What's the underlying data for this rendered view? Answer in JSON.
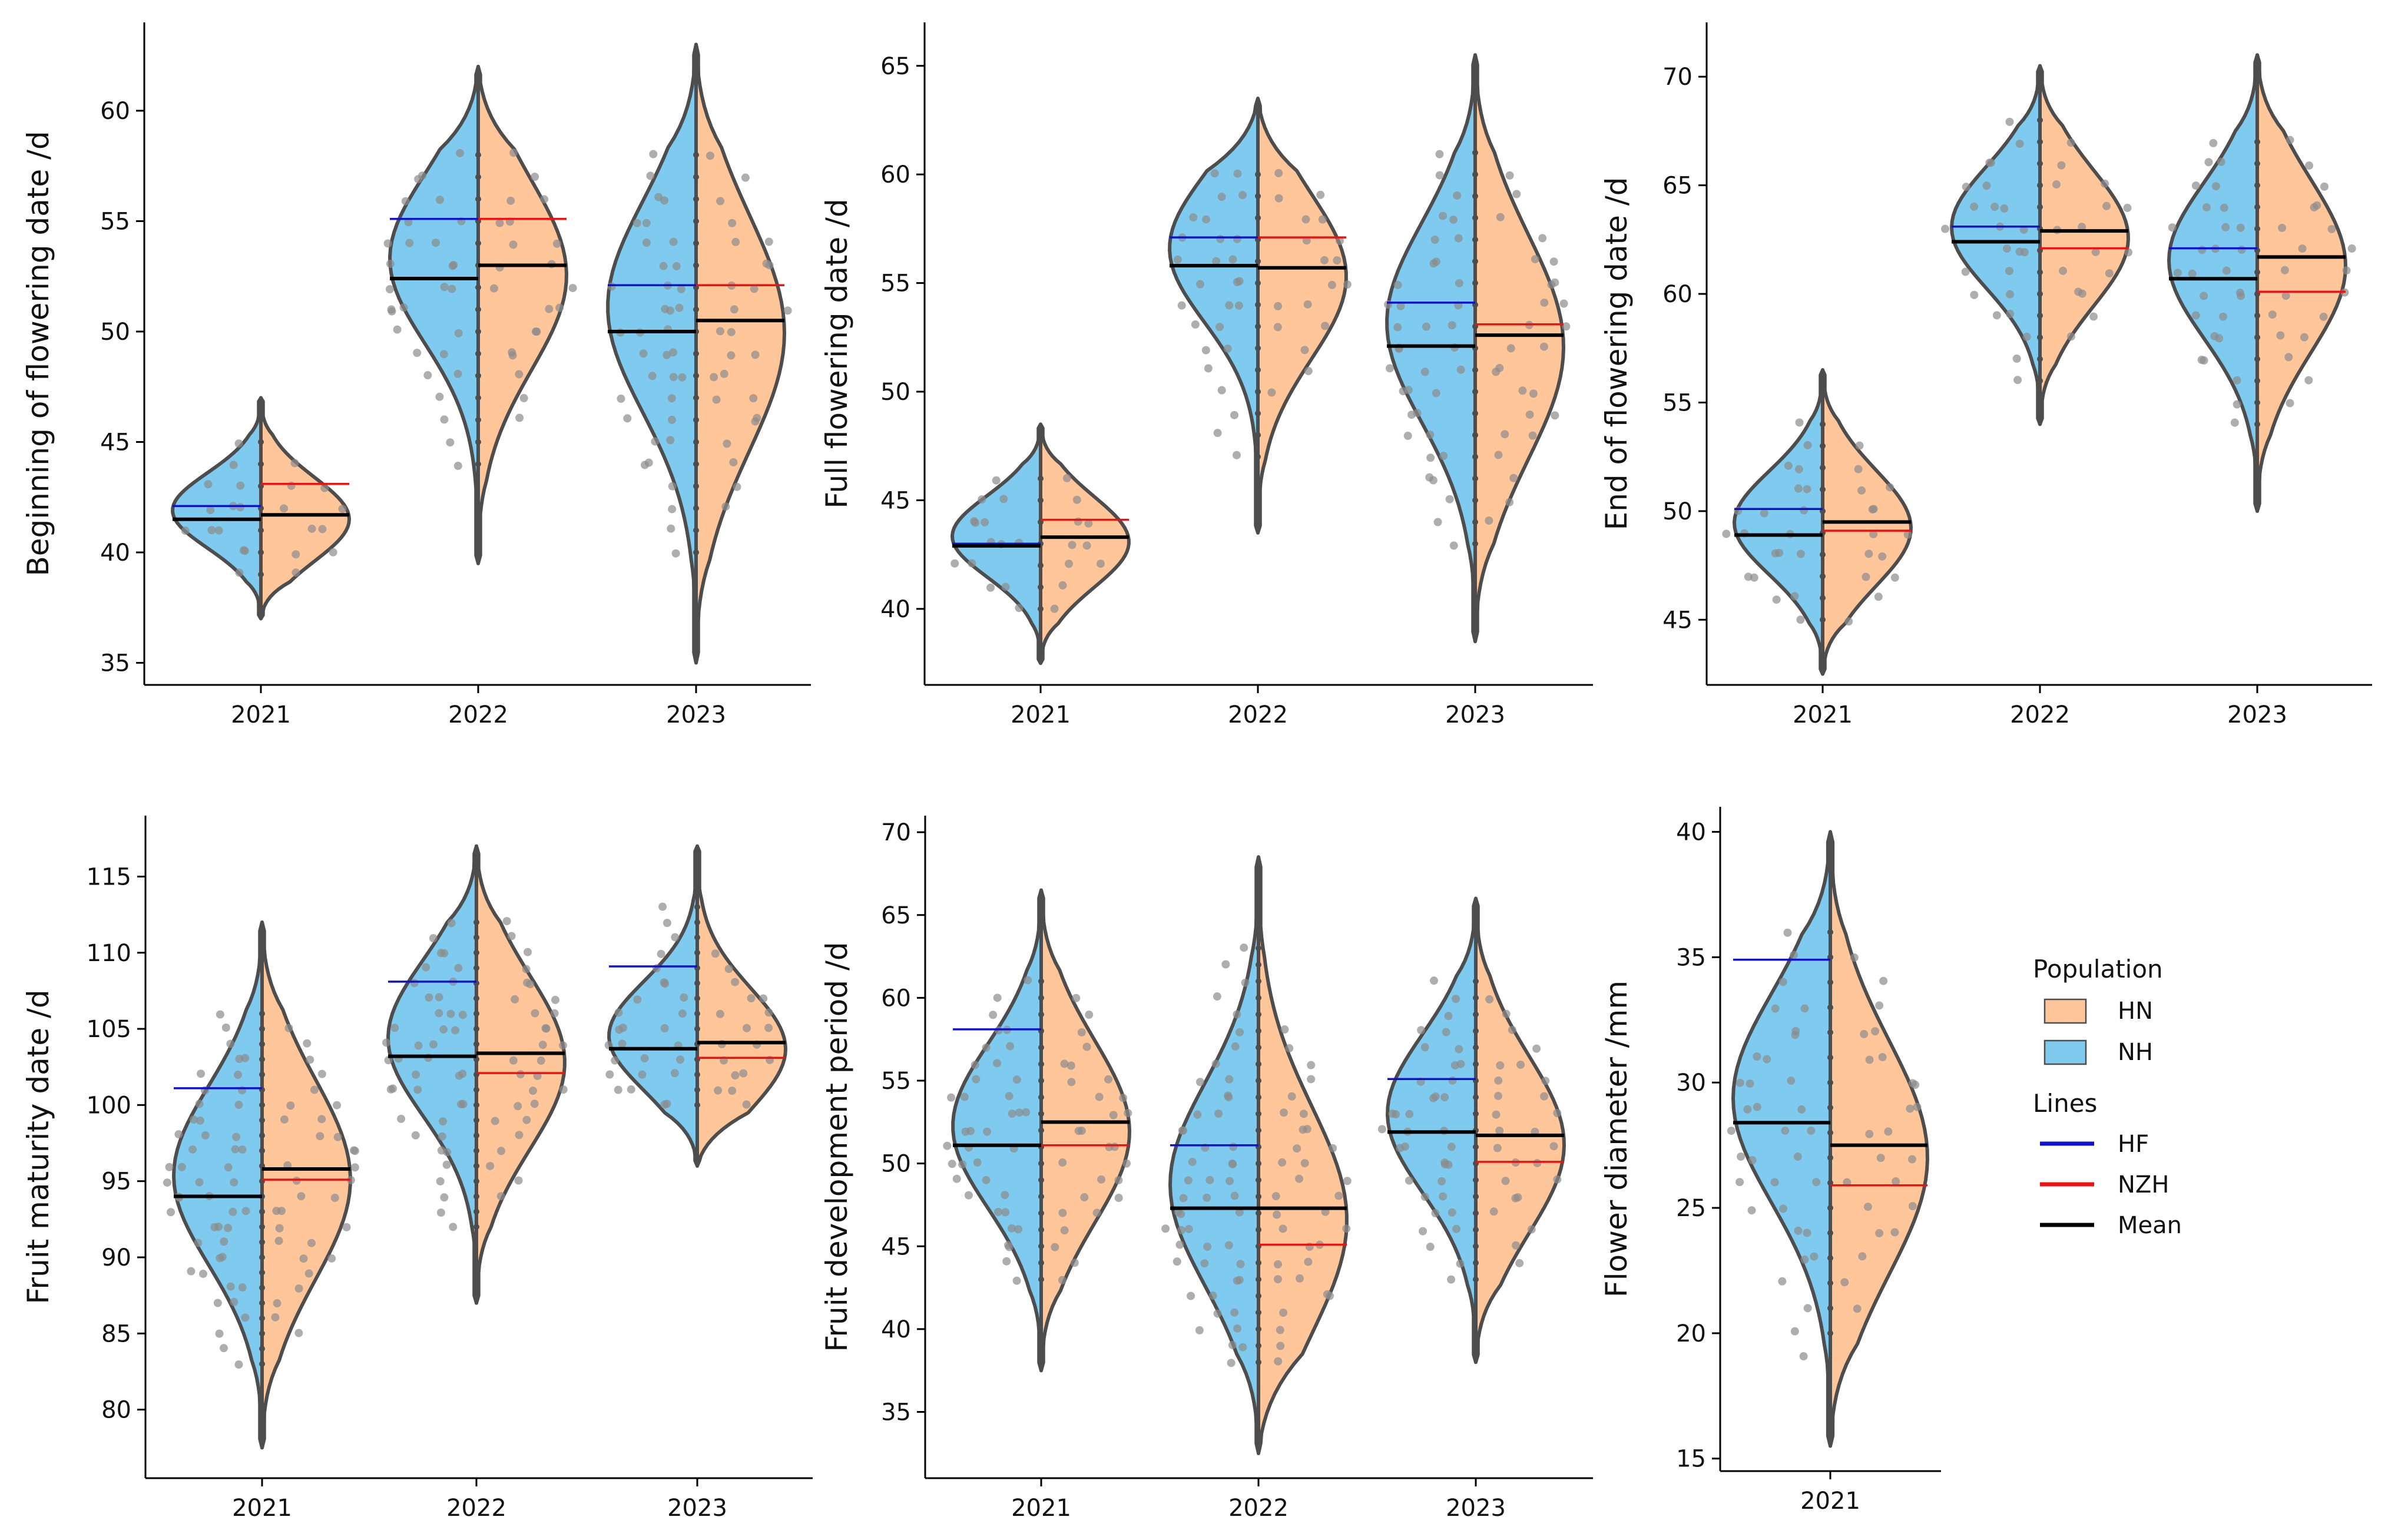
{
  "colors": {
    "NH": "#7ecbef",
    "HN": "#ffc69a",
    "outline": "#4d4d4d",
    "HF": "#1010d0",
    "NZH": "#ee1111",
    "Mean": "#000000",
    "points": "#8c8c8c"
  },
  "legend": {
    "population_title": "Population",
    "population_items": [
      {
        "label": "HN",
        "color_key": "HN"
      },
      {
        "label": "NH",
        "color_key": "NH"
      }
    ],
    "lines_title": "Lines",
    "lines_items": [
      {
        "label": "HF",
        "color_key": "HF"
      },
      {
        "label": "NZH",
        "color_key": "NZH"
      },
      {
        "label": "Mean",
        "color_key": "Mean"
      }
    ]
  },
  "chart_data": [
    {
      "type": "violin",
      "ylabel": "Beginning of flowering date /d",
      "categories": [
        "2021",
        "2022",
        "2023"
      ],
      "ylim": [
        34,
        64
      ],
      "yticks": [
        35,
        40,
        45,
        50,
        55,
        60
      ],
      "groups": [
        {
          "category": "2021",
          "range": [
            37,
            47
          ],
          "NH_mean": 41.5,
          "HN_mean": 41.7,
          "HF": 42.1,
          "NZH": 43.1,
          "points_range": [
            39,
            45
          ]
        },
        {
          "category": "2022",
          "range": [
            39.5,
            62
          ],
          "NH_mean": 52.4,
          "HN_mean": 53.0,
          "HF": 55.1,
          "NZH": 55.1,
          "points_range": [
            44,
            58
          ]
        },
        {
          "category": "2023",
          "range": [
            35,
            63
          ],
          "NH_mean": 50.0,
          "HN_mean": 50.5,
          "HF": 52.1,
          "NZH": 52.1,
          "points_range": [
            40,
            58
          ]
        }
      ]
    },
    {
      "type": "violin",
      "ylabel": "Full flowering date /d",
      "categories": [
        "2021",
        "2022",
        "2023"
      ],
      "ylim": [
        36.5,
        67
      ],
      "yticks": [
        40,
        45,
        50,
        55,
        60,
        65
      ],
      "groups": [
        {
          "category": "2021",
          "range": [
            37.5,
            48.5
          ],
          "NH_mean": 42.9,
          "HN_mean": 43.3,
          "HF": 43.0,
          "NZH": 44.1,
          "points_range": [
            40,
            46
          ]
        },
        {
          "category": "2022",
          "range": [
            43.5,
            63.5
          ],
          "NH_mean": 55.8,
          "HN_mean": 55.7,
          "HF": 57.1,
          "NZH": 57.1,
          "points_range": [
            47,
            60
          ]
        },
        {
          "category": "2023",
          "range": [
            38.5,
            65.5
          ],
          "NH_mean": 52.1,
          "HN_mean": 52.6,
          "HF": 54.1,
          "NZH": 53.1,
          "points_range": [
            43,
            61
          ]
        }
      ]
    },
    {
      "type": "violin",
      "ylabel": "End of flowering date /d",
      "categories": [
        "2021",
        "2022",
        "2023"
      ],
      "ylim": [
        42,
        72.5
      ],
      "yticks": [
        45,
        50,
        55,
        60,
        65,
        70
      ],
      "groups": [
        {
          "category": "2021",
          "range": [
            42.5,
            56.5
          ],
          "NH_mean": 48.9,
          "HN_mean": 49.5,
          "HF": 50.1,
          "NZH": 49.1,
          "points_range": [
            45,
            54
          ]
        },
        {
          "category": "2022",
          "range": [
            54,
            70.5
          ],
          "NH_mean": 62.4,
          "HN_mean": 62.9,
          "HF": 63.1,
          "NZH": 62.1,
          "points_range": [
            56,
            68
          ]
        },
        {
          "category": "2023",
          "range": [
            50,
            71
          ],
          "NH_mean": 60.7,
          "HN_mean": 61.7,
          "HF": 62.1,
          "NZH": 60.1,
          "points_range": [
            54,
            67
          ]
        }
      ]
    },
    {
      "type": "violin",
      "ylabel": "Fruit maturity date /d",
      "categories": [
        "2021",
        "2022",
        "2023"
      ],
      "ylim": [
        75.5,
        119
      ],
      "yticks": [
        80,
        85,
        90,
        95,
        100,
        105,
        110,
        115
      ],
      "groups": [
        {
          "category": "2021",
          "range": [
            77.5,
            112
          ],
          "NH_mean": 94.0,
          "HN_mean": 95.8,
          "HF": 101.1,
          "NZH": 95.1,
          "points_range": [
            83,
            106
          ]
        },
        {
          "category": "2022",
          "range": [
            87,
            117
          ],
          "NH_mean": 103.2,
          "HN_mean": 103.4,
          "HF": 108.1,
          "NZH": 102.1,
          "points_range": [
            92,
            112
          ]
        },
        {
          "category": "2023",
          "range": [
            96,
            117
          ],
          "NH_mean": 103.7,
          "HN_mean": 104.1,
          "HF": 109.1,
          "NZH": 103.1,
          "points_range": [
            100,
            113
          ]
        }
      ]
    },
    {
      "type": "violin",
      "ylabel": "Fruit development period /d",
      "categories": [
        "2021",
        "2022",
        "2023"
      ],
      "ylim": [
        31,
        71
      ],
      "yticks": [
        35,
        40,
        45,
        50,
        55,
        60,
        65,
        70
      ],
      "groups": [
        {
          "category": "2021",
          "range": [
            37.5,
            66.5
          ],
          "NH_mean": 51.1,
          "HN_mean": 52.5,
          "HF": 58.1,
          "NZH": 51.1,
          "points_range": [
            43,
            61
          ]
        },
        {
          "category": "2022",
          "range": [
            32.5,
            68.5
          ],
          "NH_mean": 47.3,
          "HN_mean": 47.3,
          "HF": 51.1,
          "NZH": 45.1,
          "points_range": [
            38,
            63
          ]
        },
        {
          "category": "2023",
          "range": [
            38,
            66
          ],
          "NH_mean": 51.9,
          "HN_mean": 51.7,
          "HF": 55.1,
          "NZH": 50.1,
          "points_range": [
            43,
            61
          ]
        }
      ]
    },
    {
      "type": "violin",
      "ylabel": "Flower diameter /mm",
      "categories": [
        "2021"
      ],
      "ylim": [
        14.5,
        41
      ],
      "yticks": [
        15,
        20,
        25,
        30,
        35,
        40
      ],
      "groups": [
        {
          "category": "2021",
          "range": [
            15.5,
            40
          ],
          "NH_mean": 28.4,
          "HN_mean": 27.5,
          "HF": 34.9,
          "NZH": 25.9,
          "points_range": [
            19.3,
            36
          ]
        }
      ]
    }
  ]
}
